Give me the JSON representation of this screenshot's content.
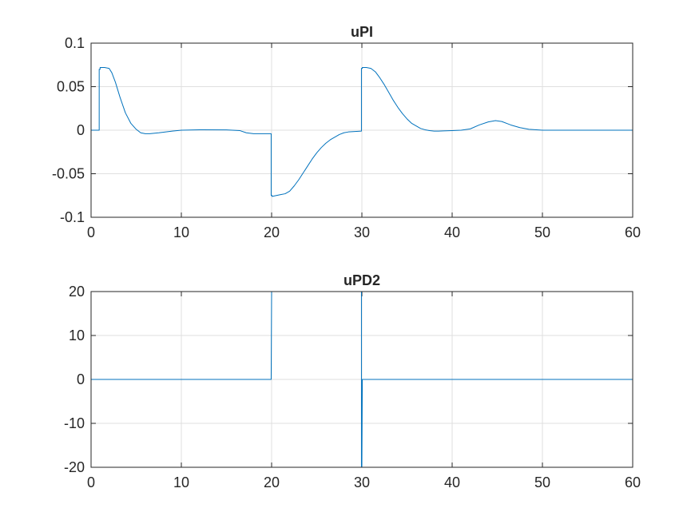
{
  "chart_data": [
    {
      "type": "line",
      "title": "uPI",
      "xlabel": "",
      "ylabel": "",
      "xlim": [
        0,
        60
      ],
      "ylim": [
        -0.1,
        0.1
      ],
      "xticks": [
        "0",
        "10",
        "20",
        "30",
        "40",
        "50",
        "60"
      ],
      "yticks": [
        "0.1",
        "0.05",
        "0",
        "-0.05",
        "-0.1"
      ],
      "grid": true,
      "line_color": "#0072BD",
      "series": [
        {
          "x": [
            0,
            0.9,
            0.9,
            1,
            1,
            1.5,
            2,
            2.3,
            2.7,
            3.2,
            3.8,
            4.4,
            5,
            5.5,
            6,
            6.5,
            7.5,
            9,
            10,
            12,
            15,
            16.5,
            17.2,
            18,
            18.5,
            19,
            19.95,
            19.95,
            20.05,
            20.05,
            21,
            21.5,
            22,
            22.5,
            23,
            23.5,
            24,
            24.5,
            25,
            25.5,
            26,
            26.5,
            27,
            27.5,
            28,
            28.5,
            29.95,
            29.95,
            30.05,
            30.05,
            30.5,
            31,
            31.5,
            32,
            32.5,
            33,
            33.5,
            34,
            34.5,
            35,
            35.5,
            36,
            36.5,
            37,
            37.5,
            38,
            38.5,
            39,
            40,
            41,
            42,
            43,
            44,
            44.8,
            45.5,
            46.5,
            47.5,
            48.5,
            50,
            55,
            60
          ],
          "y": [
            0,
            0,
            0.07,
            0.07,
            0.072,
            0.072,
            0.071,
            0.066,
            0.055,
            0.038,
            0.02,
            0.008,
            0.001,
            -0.003,
            -0.004,
            -0.004,
            -0.003,
            -0.001,
            0,
            0.0005,
            0.0003,
            -0.0005,
            -0.003,
            -0.004,
            -0.004,
            -0.004,
            -0.004,
            -0.075,
            -0.075,
            -0.076,
            -0.074,
            -0.073,
            -0.07,
            -0.064,
            -0.057,
            -0.049,
            -0.041,
            -0.033,
            -0.026,
            -0.02,
            -0.015,
            -0.011,
            -0.008,
            -0.005,
            -0.003,
            -0.002,
            -0.001,
            0.071,
            0.071,
            0.072,
            0.072,
            0.071,
            0.067,
            0.06,
            0.052,
            0.043,
            0.034,
            0.026,
            0.019,
            0.013,
            0.008,
            0.005,
            0.002,
            0.0005,
            -0.0005,
            -0.001,
            -0.001,
            -0.0008,
            -0.0005,
            0,
            0.0015,
            0.006,
            0.0095,
            0.011,
            0.01,
            0.006,
            0.003,
            0.001,
            0,
            0,
            0
          ]
        }
      ]
    },
    {
      "type": "line",
      "title": "uPD2",
      "xlabel": "",
      "ylabel": "",
      "xlim": [
        0,
        60
      ],
      "ylim": [
        -20,
        20
      ],
      "xticks": [
        "0",
        "10",
        "20",
        "30",
        "40",
        "50",
        "60"
      ],
      "yticks": [
        "20",
        "10",
        "0",
        "-10",
        "-20"
      ],
      "grid": true,
      "line_color": "#0072BD",
      "series": [
        {
          "x": [
            0,
            19.95,
            20,
            29.95,
            29.95,
            30,
            30.05,
            60
          ],
          "y": [
            0,
            0,
            20,
            20,
            -20,
            -20,
            0,
            0
          ]
        }
      ]
    }
  ]
}
